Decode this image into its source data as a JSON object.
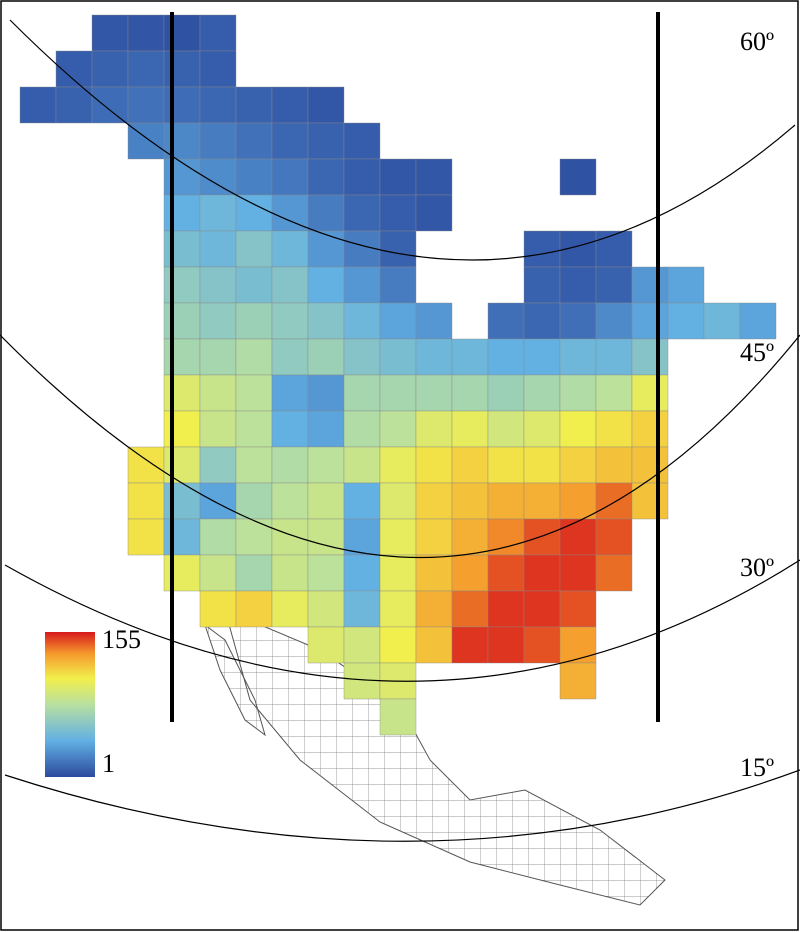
{
  "legend": {
    "ticks": [
      1,
      155
    ]
  },
  "latitude_labels": [
    "60º",
    "45º",
    "30º",
    "15º"
  ],
  "map": {
    "cells": [
      [
        null,
        null,
        6,
        5,
        4,
        8,
        null,
        null,
        null,
        null,
        null,
        null,
        null,
        null,
        null,
        null,
        null,
        null,
        null,
        null,
        null
      ],
      [
        null,
        8,
        10,
        12,
        10,
        8,
        null,
        null,
        null,
        null,
        null,
        null,
        null,
        null,
        null,
        null,
        null,
        null,
        null,
        null,
        null
      ],
      [
        8,
        10,
        14,
        16,
        14,
        12,
        10,
        8,
        6,
        null,
        null,
        null,
        null,
        null,
        null,
        null,
        null,
        null,
        null,
        null,
        null
      ],
      [
        null,
        null,
        null,
        22,
        24,
        20,
        16,
        12,
        10,
        8,
        null,
        null,
        null,
        null,
        null,
        null,
        null,
        null,
        null,
        null,
        null
      ],
      [
        null,
        null,
        null,
        null,
        30,
        26,
        22,
        18,
        12,
        8,
        6,
        6,
        null,
        null,
        null,
        4,
        null,
        null,
        null,
        null,
        null
      ],
      [
        null,
        null,
        null,
        null,
        40,
        45,
        40,
        30,
        20,
        12,
        8,
        6,
        null,
        null,
        null,
        null,
        null,
        null,
        null,
        null,
        null
      ],
      [
        null,
        null,
        null,
        null,
        50,
        45,
        55,
        45,
        30,
        20,
        10,
        null,
        null,
        null,
        8,
        6,
        8,
        null,
        null,
        null,
        null
      ],
      [
        null,
        null,
        null,
        null,
        60,
        55,
        50,
        55,
        40,
        30,
        20,
        null,
        null,
        null,
        10,
        8,
        10,
        30,
        35,
        null,
        null
      ],
      [
        null,
        null,
        null,
        null,
        65,
        60,
        65,
        60,
        55,
        45,
        35,
        30,
        null,
        15,
        12,
        15,
        25,
        35,
        40,
        45,
        35
      ],
      [
        null,
        null,
        null,
        null,
        70,
        70,
        75,
        60,
        65,
        55,
        50,
        45,
        45,
        40,
        40,
        45,
        45,
        55,
        null,
        null,
        null
      ],
      [
        null,
        null,
        null,
        null,
        95,
        85,
        80,
        35,
        30,
        70,
        70,
        70,
        70,
        65,
        70,
        75,
        80,
        100,
        null,
        null,
        null
      ],
      [
        null,
        null,
        null,
        null,
        105,
        85,
        80,
        40,
        35,
        75,
        80,
        95,
        100,
        90,
        95,
        105,
        110,
        115,
        null,
        null,
        null
      ],
      [
        null,
        null,
        null,
        110,
        95,
        60,
        80,
        75,
        80,
        85,
        100,
        110,
        115,
        110,
        110,
        115,
        120,
        120,
        null,
        null,
        null
      ],
      [
        null,
        null,
        null,
        110,
        50,
        35,
        70,
        80,
        85,
        40,
        95,
        115,
        120,
        125,
        125,
        130,
        140,
        120,
        null,
        null,
        null
      ],
      [
        null,
        null,
        null,
        110,
        45,
        75,
        80,
        85,
        85,
        35,
        100,
        115,
        125,
        135,
        145,
        150,
        145,
        null,
        null,
        null,
        null
      ],
      [
        null,
        null,
        null,
        null,
        100,
        85,
        70,
        85,
        80,
        40,
        100,
        120,
        130,
        145,
        150,
        150,
        140,
        null,
        null,
        null,
        null
      ],
      [
        null,
        null,
        null,
        null,
        null,
        110,
        115,
        100,
        90,
        45,
        100,
        125,
        140,
        150,
        150,
        145,
        null,
        null,
        null,
        null,
        null
      ],
      [
        null,
        null,
        null,
        null,
        null,
        null,
        null,
        null,
        95,
        90,
        105,
        120,
        150,
        150,
        145,
        130,
        null,
        null,
        null,
        null,
        null
      ],
      [
        null,
        null,
        null,
        null,
        null,
        null,
        null,
        null,
        null,
        90,
        95,
        null,
        null,
        null,
        null,
        125,
        null,
        null,
        null,
        null,
        null
      ],
      [
        null,
        null,
        null,
        null,
        null,
        null,
        null,
        null,
        null,
        null,
        85,
        null,
        null,
        null,
        null,
        null,
        null,
        null,
        null,
        null,
        null
      ]
    ]
  }
}
